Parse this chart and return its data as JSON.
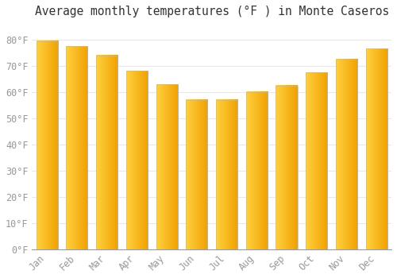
{
  "months": [
    "Jan",
    "Feb",
    "Mar",
    "Apr",
    "May",
    "Jun",
    "Jul",
    "Aug",
    "Sep",
    "Oct",
    "Nov",
    "Dec"
  ],
  "values": [
    79.5,
    77.5,
    74.0,
    68.0,
    63.0,
    57.0,
    57.0,
    60.0,
    62.5,
    67.5,
    72.5,
    76.5
  ],
  "title": "Average monthly temperatures (°F ) in Monte Caseros",
  "ylabel_ticks": [
    "0°F",
    "10°F",
    "20°F",
    "30°F",
    "40°F",
    "50°F",
    "60°F",
    "70°F",
    "80°F"
  ],
  "ytick_values": [
    0,
    10,
    20,
    30,
    40,
    50,
    60,
    70,
    80
  ],
  "ylim": [
    0,
    86
  ],
  "background_color": "#FFFFFF",
  "grid_color": "#E8E8E8",
  "title_fontsize": 10.5,
  "tick_fontsize": 8.5,
  "tick_font_color": "#999999",
  "bar_left_color": "#FFD040",
  "bar_right_color": "#F0A000",
  "bar_edge_color": "#BBBBBB",
  "bar_width": 0.72
}
